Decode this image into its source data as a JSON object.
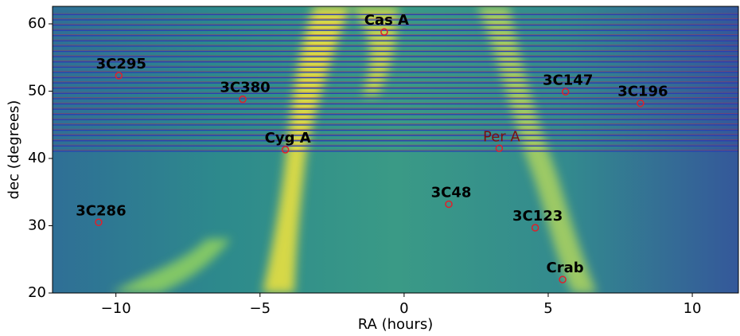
{
  "chart_data": {
    "type": "scatter",
    "xlabel": "RA (hours)",
    "ylabel": "dec (degrees)",
    "labels": [
      "Cas A",
      "Cyg A",
      "Per A",
      "3C295",
      "3C380",
      "3C147",
      "3C196",
      "3C286",
      "3C48",
      "3C123",
      "Crab"
    ],
    "x": [
      -0.69,
      -4.12,
      3.3,
      -9.9,
      -5.6,
      5.6,
      8.2,
      -10.6,
      1.55,
      4.55,
      5.5
    ],
    "values": [
      58.8,
      41.3,
      41.5,
      52.3,
      48.8,
      49.9,
      48.2,
      30.5,
      33.2,
      29.7,
      22.0
    ],
    "color": "#e0202a",
    "xlim": [
      -12.2,
      11.6
    ],
    "ylim": [
      20,
      62.6
    ],
    "xticks": [
      {
        "value": -10,
        "label": "−10"
      },
      {
        "value": -5,
        "label": "−5"
      },
      0,
      5,
      10
    ],
    "yticks": [
      20,
      30,
      40,
      50,
      60
    ]
  }
}
